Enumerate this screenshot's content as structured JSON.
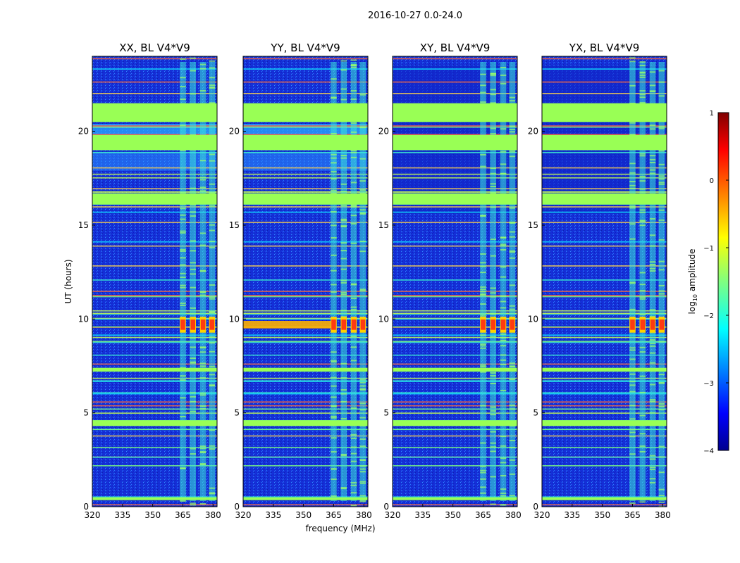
{
  "figure_title": "2016-10-27 0.0-24.0",
  "chart_data": {
    "type": "heatmap",
    "title": "2016-10-27 0.0-24.0",
    "xlabel": "frequency (MHz)",
    "ylabel": "UT (hours)",
    "xlim": [
      320,
      382
    ],
    "ylim": [
      0,
      24
    ],
    "x_ticks": [
      "320",
      "335",
      "350",
      "365",
      "380"
    ],
    "y_ticks": [
      "0",
      "5",
      "10",
      "15",
      "20"
    ],
    "panels": [
      {
        "title": "XX, BL V4*V9",
        "strong_band_low_freq": false
      },
      {
        "title": "YY, BL V4*V9",
        "strong_band_low_freq": true
      },
      {
        "title": "XY, BL V4*V9",
        "strong_band_low_freq": false
      },
      {
        "title": "YX, BL V4*V9",
        "strong_band_low_freq": false
      }
    ],
    "flagged_time_bands_hours": [
      [
        20.5,
        21.5
      ],
      [
        19.0,
        19.8
      ],
      [
        16.1,
        16.7
      ],
      [
        7.2,
        7.4
      ],
      [
        4.3,
        4.6
      ],
      [
        0.35,
        0.5
      ]
    ],
    "rfi_channel_groups_mhz": [
      [
        363.5,
        366.5
      ],
      [
        368.5,
        371.5
      ],
      [
        373.5,
        376.5
      ],
      [
        378,
        381
      ]
    ],
    "strong_rfi_time_hours": [
      9.5,
      9.9
    ],
    "colorbar": {
      "label": "log10 amplitude",
      "label_main": "log",
      "label_sub": "10",
      "label_rest": " amplitude",
      "range": [
        -4,
        1
      ],
      "ticks": [
        "1",
        "0",
        "−1",
        "−2",
        "−3",
        "−4"
      ],
      "colormap": "jet"
    }
  }
}
